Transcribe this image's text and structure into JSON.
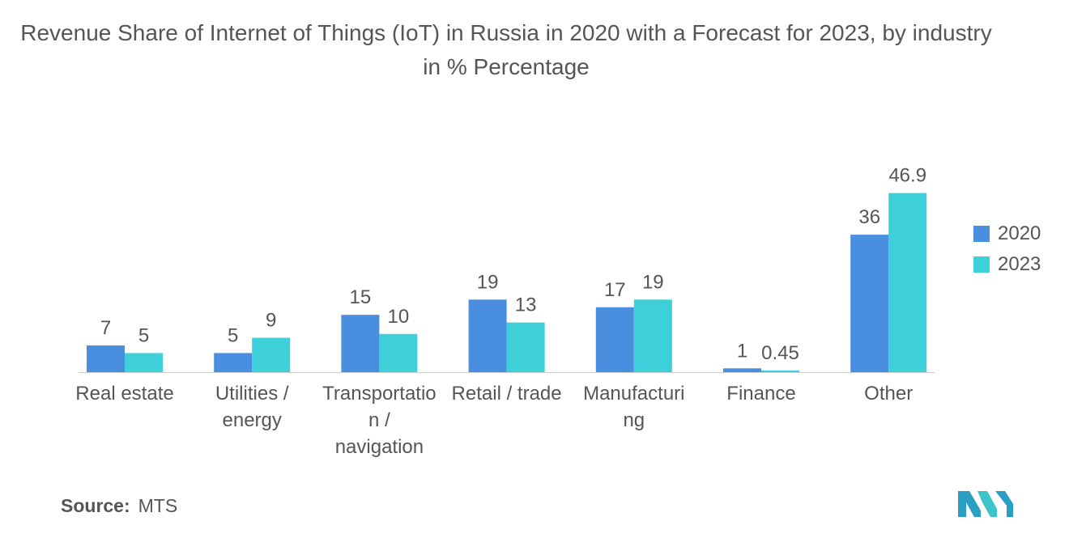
{
  "title": "Revenue Share of Internet of Things (IoT) in Russia in 2020 with a Forecast for 2023, by industry in % Percentage",
  "source": {
    "label": "Source:",
    "value": "MTS"
  },
  "colors": {
    "series_2020": "#4a8ee0",
    "series_2023": "#3dd0d8",
    "text": "#555555",
    "axis": "#cccccc"
  },
  "chart_data": {
    "type": "bar",
    "title": "Revenue Share of Internet of Things (IoT) in Russia in 2020 with a Forecast for 2023, by industry in % Percentage",
    "xlabel": "",
    "ylabel": "",
    "categories": [
      [
        "Real estate"
      ],
      [
        "Utilities /",
        "energy"
      ],
      [
        "Transportatio",
        "n /",
        "navigation"
      ],
      [
        "Retail / trade"
      ],
      [
        "Manufacturi",
        "ng"
      ],
      [
        "Finance"
      ],
      [
        "Other"
      ]
    ],
    "series": [
      {
        "name": "2020",
        "values": [
          7,
          5,
          15,
          19,
          17,
          1,
          36
        ],
        "labels": [
          "7",
          "5",
          "15",
          "19",
          "17",
          "1",
          "36"
        ]
      },
      {
        "name": "2023",
        "values": [
          5,
          9,
          10,
          13,
          19,
          0.45,
          46.9
        ],
        "labels": [
          "5",
          "9",
          "10",
          "13",
          "19",
          "0.45",
          "46.9"
        ]
      }
    ],
    "ylim": [
      0,
      50
    ],
    "grid": false,
    "legend_position": "right"
  }
}
